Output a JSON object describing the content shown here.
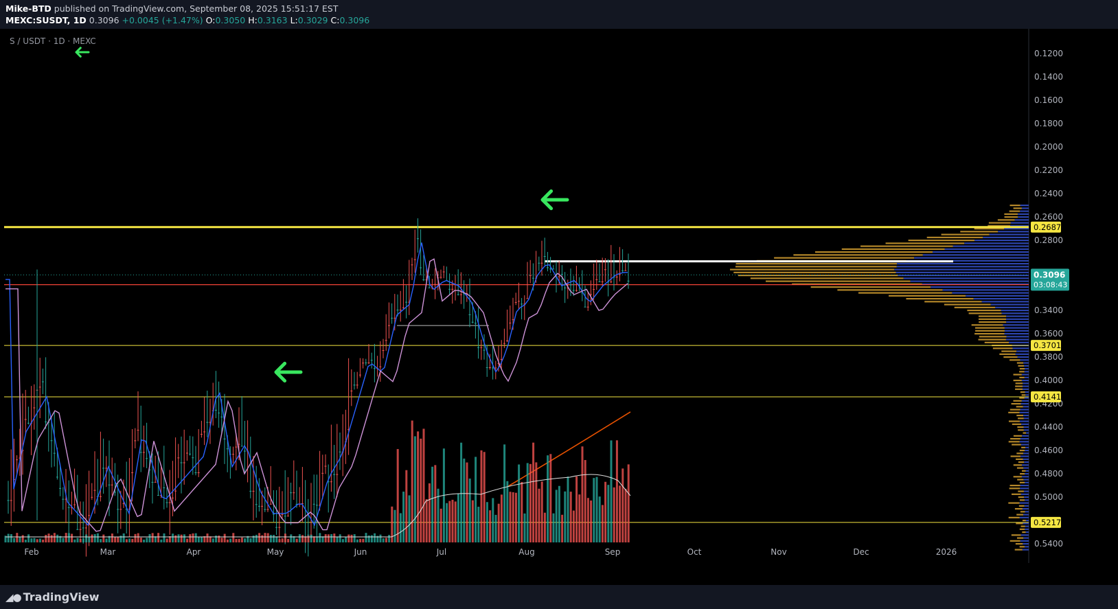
{
  "header": {
    "author": "Mike-BTD",
    "published": "published on TradingView.com, September 08, 2025 15:51:17 EST",
    "symbol": "MEXC:SUSDT, 1D",
    "last": "0.3096",
    "change": "+0.0045 (+1.47%)",
    "o_label": "O:",
    "o": "0.3050",
    "h_label": "H:",
    "h": "0.3163",
    "l_label": "L:",
    "l": "0.3029",
    "c_label": "C:",
    "c": "0.3096"
  },
  "watermark": "S / USDT · 1D · MEXC",
  "footer": {
    "brand": "TradingView"
  },
  "price_axis": {
    "ticks": [
      "0.5400",
      "0.5000",
      "0.4800",
      "0.4600",
      "0.4400",
      "0.4200",
      "0.4000",
      "0.3800",
      "0.3600",
      "0.3400",
      "0.3200",
      "0.2800",
      "0.2600",
      "0.2400",
      "0.2200",
      "0.2000",
      "0.1800",
      "0.1600",
      "0.1400",
      "0.1200"
    ],
    "badges": [
      {
        "text": "0.5217",
        "bg": "#f5e642",
        "fg": "#000"
      },
      {
        "text": "0.4141",
        "bg": "#f5e642",
        "fg": "#000"
      },
      {
        "text": "0.3701",
        "bg": "#f5e642",
        "fg": "#000"
      },
      {
        "text": "0.2687",
        "bg": "#f5e642",
        "fg": "#000"
      }
    ],
    "current_price": "0.3096",
    "countdown": "03:08:43",
    "current_color": "#26a69a"
  },
  "time_axis": [
    "Feb",
    "Mar",
    "Apr",
    "May",
    "Jun",
    "Jul",
    "Aug",
    "Sep",
    "Oct",
    "Nov",
    "Dec",
    "2026"
  ],
  "colors": {
    "up": "#26a69a",
    "down": "#ef5350",
    "ma_fast": "#2962ff",
    "ma_slow": "#ce93d8",
    "level": "#f5e642",
    "red_level": "#f44336",
    "arrow": "#39e75f",
    "trend": "#e65100",
    "vp_up": "#c8962d",
    "vp_down": "#2f49b8"
  },
  "chart_data": {
    "type": "candlestick",
    "title": "MEXC:SUSDT, 1D",
    "horizontal_levels": [
      0.5217,
      0.4141,
      0.3701,
      0.2687
    ],
    "red_level": 0.318,
    "support_white": 0.298,
    "close_series": [
      {
        "date": "Feb",
        "close": 0.5
      },
      {
        "date": "Feb-mid",
        "close": 0.44
      },
      {
        "date": "Mar",
        "close": 0.52
      },
      {
        "date": "Mar-mid",
        "close": 0.47
      },
      {
        "date": "Apr",
        "close": 0.49
      },
      {
        "date": "Apr-mid",
        "close": 0.47
      },
      {
        "date": "May",
        "close": 0.51
      },
      {
        "date": "May-mid",
        "close": 0.52
      },
      {
        "date": "Jun",
        "close": 0.41
      },
      {
        "date": "Jun-mid",
        "close": 0.34
      },
      {
        "date": "Jun-late",
        "close": 0.29
      },
      {
        "date": "Jul",
        "close": 0.32
      },
      {
        "date": "Jul-mid",
        "close": 0.37
      },
      {
        "date": "Jul-late",
        "close": 0.35
      },
      {
        "date": "Aug",
        "close": 0.3
      },
      {
        "date": "Aug-mid",
        "close": 0.32
      },
      {
        "date": "Aug-late",
        "close": 0.33
      },
      {
        "date": "Sep",
        "close": 0.3096
      }
    ],
    "volume_ma_peak": 0.16
  }
}
